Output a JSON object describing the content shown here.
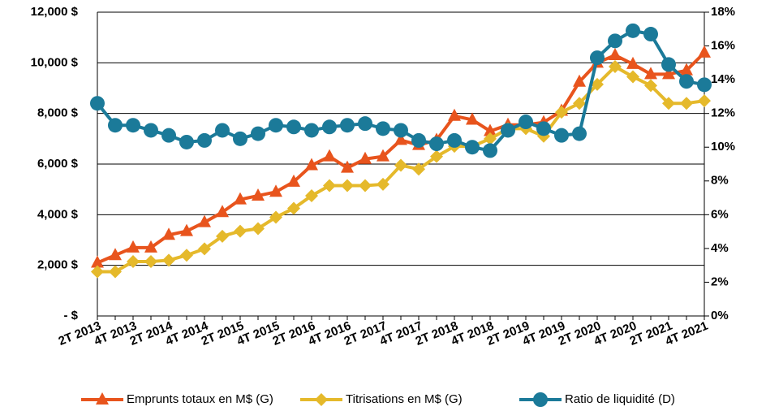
{
  "chart_data": {
    "type": "line",
    "categories": [
      "2T 2013",
      null,
      "4T 2013",
      null,
      "2T 2014",
      null,
      "4T 2014",
      null,
      "2T 2015",
      null,
      "4T 2015",
      null,
      "2T 2016",
      null,
      "4T 2016",
      null,
      "2T 2017",
      null,
      "4T 2017",
      null,
      "2T 2018",
      null,
      "4T 2018",
      null,
      "2T 2019",
      null,
      "4T 2019",
      null,
      "2T 2020",
      null,
      "4T 2020",
      null,
      "2T 2021",
      null,
      "4T 2021"
    ],
    "series": [
      {
        "name": "Emprunts totaux en M$ (G)",
        "color": "#e8541d",
        "marker": "triangle",
        "axis": "y",
        "values": [
          2100,
          2400,
          2700,
          2700,
          3200,
          3350,
          3700,
          4100,
          4600,
          4750,
          4900,
          5300,
          5950,
          6300,
          5850,
          6200,
          6300,
          6950,
          6750,
          6950,
          7900,
          7750,
          7300,
          7550,
          7550,
          7650,
          8100,
          9250,
          10000,
          10300,
          9950,
          9550,
          9550,
          9700,
          10400
        ]
      },
      {
        "name": "Titrisations en M$ (G)",
        "color": "#e5b92b",
        "marker": "diamond",
        "axis": "y",
        "values": [
          1750,
          1750,
          2150,
          2150,
          2200,
          2400,
          2650,
          3150,
          3350,
          3450,
          3900,
          4250,
          4750,
          5150,
          5150,
          5150,
          5200,
          5950,
          5800,
          6300,
          6700,
          6700,
          7000,
          7400,
          7400,
          7100,
          8050,
          8400,
          9150,
          9850,
          9450,
          9100,
          8400,
          8400,
          8500
        ]
      },
      {
        "name": "Ratio de liquidité (D)",
        "color": "#1b7a99",
        "marker": "circle",
        "axis": "y2",
        "values": [
          12.6,
          11.3,
          11.3,
          11.0,
          10.7,
          10.3,
          10.4,
          11.0,
          10.5,
          10.8,
          11.3,
          11.2,
          11.0,
          11.2,
          11.3,
          11.4,
          11.1,
          11.0,
          10.4,
          10.2,
          10.4,
          10.0,
          9.8,
          11.0,
          11.5,
          11.1,
          10.7,
          10.8,
          15.3,
          16.3,
          16.9,
          16.7,
          14.9,
          13.9,
          13.7
        ]
      }
    ],
    "ylim": [
      0,
      12000
    ],
    "yticks": [
      {
        "value": 0,
        "label": "- $"
      },
      {
        "value": 2000,
        "label": "2,000 $"
      },
      {
        "value": 4000,
        "label": "4,000 $"
      },
      {
        "value": 6000,
        "label": "6,000 $"
      },
      {
        "value": 8000,
        "label": "8,000 $"
      },
      {
        "value": 10000,
        "label": "10,000 $"
      },
      {
        "value": 12000,
        "label": "12,000 $"
      }
    ],
    "y2lim": [
      0,
      18
    ],
    "y2ticks": [
      {
        "value": 0,
        "label": "0%"
      },
      {
        "value": 2,
        "label": "2%"
      },
      {
        "value": 4,
        "label": "4%"
      },
      {
        "value": 6,
        "label": "6%"
      },
      {
        "value": 8,
        "label": "8%"
      },
      {
        "value": 10,
        "label": "10%"
      },
      {
        "value": 12,
        "label": "12%"
      },
      {
        "value": 14,
        "label": "14%"
      },
      {
        "value": 16,
        "label": "16%"
      },
      {
        "value": 18,
        "label": "18%"
      }
    ],
    "grid": true,
    "legend": "bottom"
  }
}
